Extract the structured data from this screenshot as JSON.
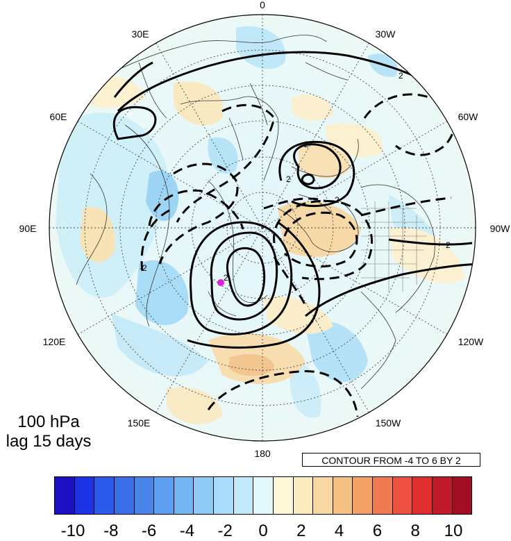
{
  "title": {
    "line1": "100 hPa",
    "line2": "lag 15 days"
  },
  "contour_note": "CONTOUR FROM -4 TO 6 BY 2",
  "longitude_labels": [
    "0",
    "30W",
    "60W",
    "90W",
    "120W",
    "150W",
    "180",
    "150E",
    "120E",
    "90E",
    "60E",
    "30E"
  ],
  "colorbar": {
    "colors": [
      "#1c0fc4",
      "#1f33e6",
      "#2b5be8",
      "#3a6fe8",
      "#4a85ea",
      "#5da0ef",
      "#73b6f3",
      "#8fcaf6",
      "#a8dcf8",
      "#c2ebfa",
      "#e3f8fb",
      "#fdf9d8",
      "#fbebbf",
      "#f8d7a0",
      "#f5c184",
      "#f3a167",
      "#f07a51",
      "#ec5142",
      "#e02e2e",
      "#c11b2b",
      "#a00e24"
    ],
    "tick_labels": [
      "-10",
      "-8",
      "-6",
      "-4",
      "-2",
      "0",
      "2",
      "4",
      "6",
      "8",
      "10"
    ]
  },
  "contour_labels": [
    "2",
    "-2",
    "2",
    "2",
    "-2",
    "2",
    "2"
  ],
  "marker": {
    "color": "#e020e0"
  }
}
